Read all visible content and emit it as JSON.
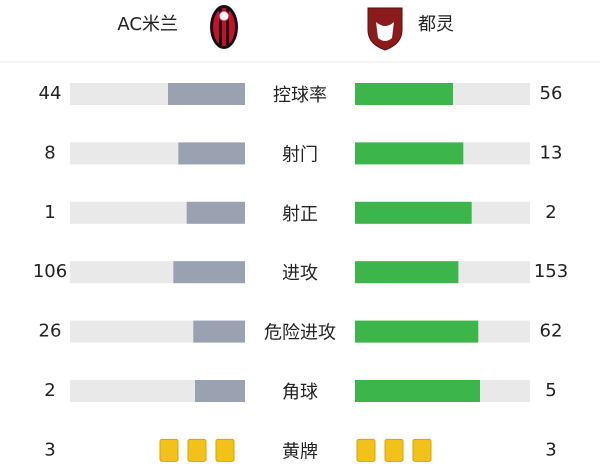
{
  "home": {
    "name": "AC米兰"
  },
  "away": {
    "name": "都灵"
  },
  "stats": [
    {
      "label": "控球率",
      "home": 44,
      "away": 56
    },
    {
      "label": "射门",
      "home": 8,
      "away": 13
    },
    {
      "label": "射正",
      "home": 1,
      "away": 2
    },
    {
      "label": "进攻",
      "home": 106,
      "away": 153
    },
    {
      "label": "危险进攻",
      "home": 26,
      "away": 62
    },
    {
      "label": "角球",
      "home": 2,
      "away": 5
    }
  ],
  "cards": {
    "label": "黄牌",
    "home": 3,
    "away": 3
  },
  "home_color": "#9aa2b1",
  "away_color": "#3cb54a",
  "card_color": "#f2c21b"
}
